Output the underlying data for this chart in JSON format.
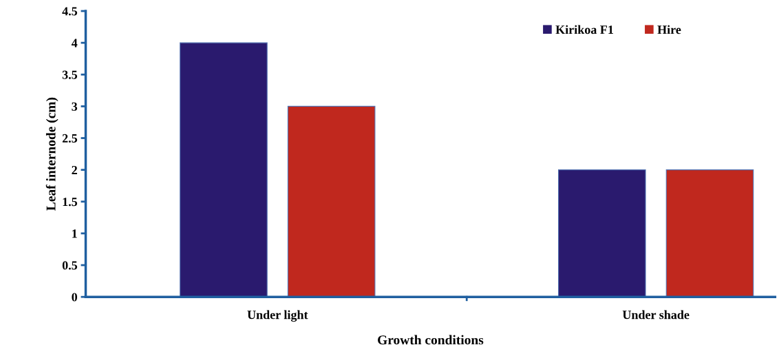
{
  "chart_data": {
    "type": "bar",
    "xlabel": "Growth conditions",
    "ylabel": "Leaf internode (cm)",
    "categories": [
      "Under light",
      "Under shade"
    ],
    "series": [
      {
        "name": "Kirikoa F1",
        "color": "#2a1a6e",
        "values": [
          4,
          2
        ]
      },
      {
        "name": "Hire",
        "color": "#c0281e",
        "values": [
          3,
          2
        ]
      }
    ],
    "ylim": [
      0,
      4.5
    ],
    "yticks": [
      0,
      0.5,
      1,
      1.5,
      2,
      2.5,
      3,
      3.5,
      4,
      4.5
    ],
    "grid": false,
    "legend": "top right"
  }
}
